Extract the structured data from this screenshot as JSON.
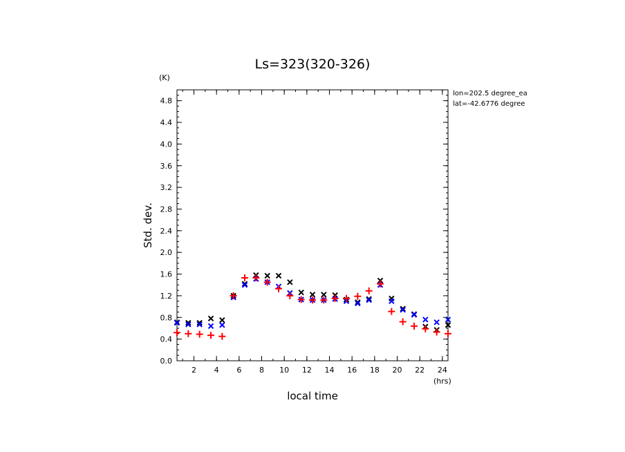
{
  "chart_data": {
    "type": "scatter",
    "title": "Ls=323(320-326)",
    "xlabel": "local time",
    "ylabel": "Std. dev.",
    "x_unit": "(hrs)",
    "y_unit": "(K)",
    "xlim": [
      0.5,
      24.5
    ],
    "ylim": [
      0.0,
      5.0
    ],
    "xticks": [
      2,
      4,
      6,
      8,
      10,
      12,
      14,
      16,
      18,
      20,
      22,
      24
    ],
    "yticks": [
      0.0,
      0.4,
      0.8,
      1.2,
      1.6,
      2.0,
      2.4,
      2.8,
      3.2,
      3.6,
      4.0,
      4.4,
      4.8
    ],
    "grid": false,
    "annotations": [
      "lon=202.5 degree_ea",
      "lat=-42.6776 degree"
    ],
    "series": [
      {
        "color": "#000000",
        "marker": "x",
        "x": [
          0.5,
          1.5,
          2.5,
          3.5,
          4.5,
          5.5,
          6.5,
          7.5,
          8.5,
          9.5,
          10.5,
          11.5,
          12.5,
          13.5,
          14.5,
          15.5,
          16.5,
          17.5,
          18.5,
          19.5,
          20.5,
          21.5,
          22.5,
          23.5,
          24.5
        ],
        "y": [
          0.71,
          0.7,
          0.7,
          0.78,
          0.75,
          1.2,
          1.42,
          1.58,
          1.57,
          1.57,
          1.45,
          1.26,
          1.22,
          1.22,
          1.21,
          1.13,
          1.08,
          1.14,
          1.48,
          1.15,
          0.96,
          0.86,
          0.63,
          0.57,
          0.66
        ]
      },
      {
        "color": "#0000ff",
        "marker": "x",
        "x": [
          0.5,
          1.5,
          2.5,
          3.5,
          4.5,
          5.5,
          6.5,
          7.5,
          8.5,
          9.5,
          10.5,
          11.5,
          12.5,
          13.5,
          14.5,
          15.5,
          16.5,
          17.5,
          18.5,
          19.5,
          20.5,
          21.5,
          22.5,
          23.5,
          24.5
        ],
        "y": [
          0.7,
          0.67,
          0.67,
          0.64,
          0.66,
          1.17,
          1.4,
          1.51,
          1.45,
          1.37,
          1.25,
          1.13,
          1.12,
          1.12,
          1.14,
          1.1,
          1.06,
          1.12,
          1.4,
          1.1,
          0.94,
          0.85,
          0.76,
          0.71,
          0.76
        ]
      },
      {
        "color": "#ff0000",
        "marker": "+",
        "x": [
          0.5,
          1.5,
          2.5,
          3.5,
          4.5,
          5.5,
          6.5,
          7.5,
          8.5,
          9.5,
          10.5,
          11.5,
          12.5,
          13.5,
          14.5,
          15.5,
          16.5,
          17.5,
          18.5,
          19.5,
          20.5,
          21.5,
          22.5,
          23.5,
          24.5
        ],
        "y": [
          0.52,
          0.5,
          0.49,
          0.47,
          0.45,
          1.2,
          1.53,
          1.53,
          1.45,
          1.33,
          1.2,
          1.13,
          1.12,
          1.12,
          1.15,
          1.15,
          1.19,
          1.29,
          1.42,
          0.91,
          0.72,
          0.64,
          0.59,
          0.53,
          0.5
        ]
      }
    ]
  }
}
